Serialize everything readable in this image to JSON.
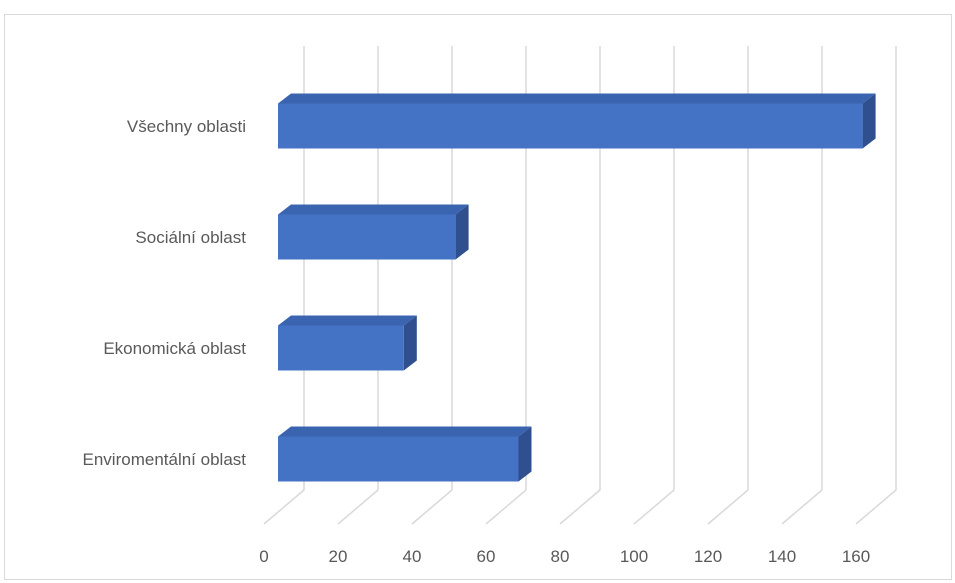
{
  "chart_data": {
    "type": "bar",
    "orientation": "horizontal",
    "style": "3d",
    "categories": [
      "Všechny oblasti",
      "Sociální oblast",
      "Ekonomická oblast",
      "Enviromentální oblast"
    ],
    "values": [
      158,
      48,
      34,
      65
    ],
    "xlim": [
      0,
      160
    ],
    "x_ticks": [
      "0",
      "20",
      "40",
      "60",
      "80",
      "100",
      "120",
      "140",
      "160"
    ],
    "grid": true,
    "legend": "none",
    "title": "",
    "xlabel": "",
    "ylabel": "",
    "colors": {
      "bar_front": "#4472C4",
      "bar_top": "#3A64B0",
      "bar_side": "#2F4F8F",
      "gridline": "#D9D9D9",
      "text": "#595959"
    }
  }
}
